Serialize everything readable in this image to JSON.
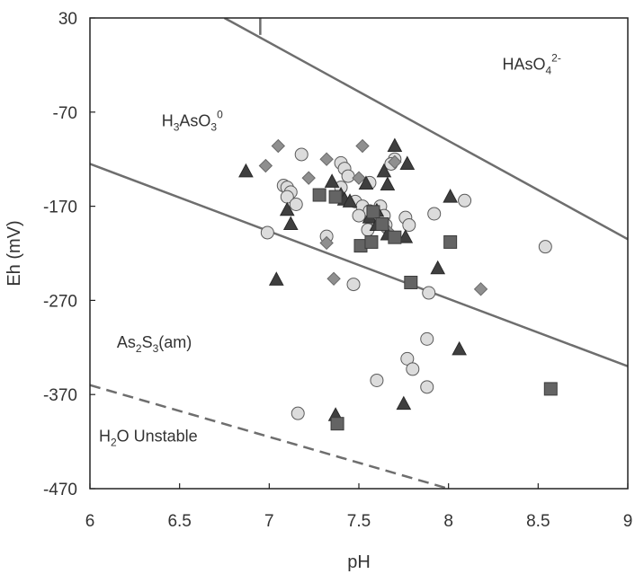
{
  "chart_data": {
    "type": "scatter",
    "xlabel": "pH",
    "ylabel": "Eh (mV)",
    "xlim": [
      6,
      9
    ],
    "ylim": [
      -470,
      30
    ],
    "xticks": [
      "6",
      "6.5",
      "7",
      "7.5",
      "8",
      "8.5",
      "9"
    ],
    "yticks": [
      "30",
      "-70",
      "-170",
      "-270",
      "-370",
      "-470"
    ],
    "grid": false,
    "region_labels": [
      {
        "id": "h3aso3",
        "base": "H",
        "sub1": "3",
        "mid": "AsO",
        "sub2": "3",
        "sup": "0",
        "anchor": {
          "x": 6.4,
          "y": -85
        }
      },
      {
        "id": "haso4",
        "base": "HAsO",
        "sub1": "4",
        "sup": "2-",
        "anchor": {
          "x": 8.3,
          "y": -25
        }
      },
      {
        "id": "as2s3",
        "base": "As",
        "sub1": "2",
        "mid": "S",
        "sub2": "3",
        "tail": "(am)",
        "anchor": {
          "x": 6.15,
          "y": -320
        }
      },
      {
        "id": "h2o",
        "base": "H",
        "sub1": "2",
        "tail": "O Unstable",
        "anchor": {
          "x": 6.05,
          "y": -420
        }
      }
    ],
    "boundaries": [
      {
        "name": "H3AsO3/HAsO4 boundary",
        "style": "solid",
        "x": [
          6.75,
          9
        ],
        "y": [
          30,
          -205
        ]
      },
      {
        "name": "H3AsO3/HAsO4 vertical segment",
        "style": "solid",
        "x": [
          6.95,
          6.95
        ],
        "y": [
          30,
          12
        ]
      },
      {
        "name": "H3AsO3/As2S3 boundary",
        "style": "solid",
        "x": [
          6,
          9
        ],
        "y": [
          -125,
          -340
        ]
      },
      {
        "name": "H2O stability limit",
        "style": "dashed",
        "x": [
          6,
          8.0
        ],
        "y": [
          -360,
          -470
        ]
      }
    ],
    "series": [
      {
        "marker": "circle",
        "points": [
          [
            7.18,
            -115
          ],
          [
            7.08,
            -148
          ],
          [
            7.1,
            -150
          ],
          [
            7.12,
            -155
          ],
          [
            7.1,
            -160
          ],
          [
            7.15,
            -168
          ],
          [
            7.4,
            -124
          ],
          [
            7.42,
            -130
          ],
          [
            7.44,
            -138
          ],
          [
            7.4,
            -150
          ],
          [
            7.56,
            -145
          ],
          [
            7.48,
            -165
          ],
          [
            7.52,
            -170
          ],
          [
            7.56,
            -175
          ],
          [
            7.58,
            -180
          ],
          [
            7.6,
            -185
          ],
          [
            7.5,
            -180
          ],
          [
            7.55,
            -195
          ],
          [
            7.62,
            -170
          ],
          [
            7.64,
            -180
          ],
          [
            7.65,
            -190
          ],
          [
            7.7,
            -120
          ],
          [
            7.68,
            -125
          ],
          [
            7.76,
            -182
          ],
          [
            7.78,
            -190
          ],
          [
            7.92,
            -178
          ],
          [
            8.09,
            -164
          ],
          [
            8.54,
            -213
          ],
          [
            6.99,
            -198
          ],
          [
            7.32,
            -202
          ],
          [
            7.47,
            -253
          ],
          [
            7.89,
            -262
          ],
          [
            7.88,
            -311
          ],
          [
            7.77,
            -332
          ],
          [
            7.8,
            -343
          ],
          [
            7.88,
            -362
          ],
          [
            7.6,
            -355
          ],
          [
            7.16,
            -390
          ]
        ]
      },
      {
        "marker": "diamond",
        "points": [
          [
            7.05,
            -106
          ],
          [
            6.98,
            -127
          ],
          [
            7.22,
            -140
          ],
          [
            7.32,
            -120
          ],
          [
            7.52,
            -106
          ],
          [
            7.5,
            -140
          ],
          [
            7.7,
            -123
          ],
          [
            7.36,
            -247
          ],
          [
            7.32,
            -209
          ],
          [
            8.18,
            -258
          ],
          [
            7.66,
            -196
          ]
        ]
      },
      {
        "marker": "triangle",
        "points": [
          [
            6.87,
            -133
          ],
          [
            7.04,
            -248
          ],
          [
            7.1,
            -174
          ],
          [
            7.12,
            -189
          ],
          [
            7.35,
            -144
          ],
          [
            7.4,
            -158
          ],
          [
            7.42,
            -163
          ],
          [
            7.45,
            -165
          ],
          [
            7.37,
            -392
          ],
          [
            7.54,
            -146
          ],
          [
            7.56,
            -182
          ],
          [
            7.6,
            -175
          ],
          [
            7.66,
            -200
          ],
          [
            7.6,
            -190
          ],
          [
            7.64,
            -133
          ],
          [
            7.66,
            -147
          ],
          [
            7.7,
            -106
          ],
          [
            7.76,
            -203
          ],
          [
            7.77,
            -125
          ],
          [
            7.94,
            -236
          ],
          [
            8.01,
            -160
          ],
          [
            8.06,
            -322
          ],
          [
            7.75,
            -380
          ]
        ]
      },
      {
        "marker": "square",
        "points": [
          [
            7.28,
            -158
          ],
          [
            7.37,
            -160
          ],
          [
            7.58,
            -176
          ],
          [
            7.63,
            -189
          ],
          [
            7.51,
            -212
          ],
          [
            7.57,
            -208
          ],
          [
            7.7,
            -203
          ],
          [
            8.01,
            -208
          ],
          [
            7.79,
            -251
          ],
          [
            7.38,
            -401
          ],
          [
            8.57,
            -364
          ]
        ]
      }
    ]
  }
}
